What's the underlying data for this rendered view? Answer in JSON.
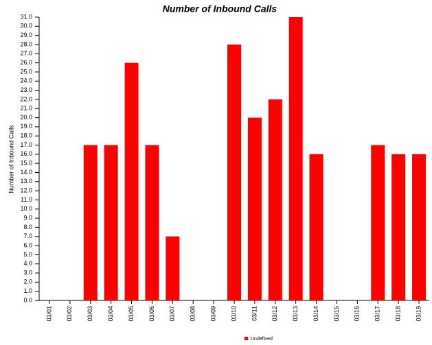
{
  "chart_data": {
    "type": "bar",
    "title": "Number of Inbound Calls",
    "ylabel": "Number of Inbound Calls",
    "categories": [
      "03/01",
      "03/02",
      "03/03",
      "03/04",
      "03/05",
      "03/06",
      "03/07",
      "03/08",
      "03/09",
      "03/10",
      "03/11",
      "03/12",
      "03/13",
      "03/14",
      "03/15",
      "03/16",
      "03/17",
      "03/18",
      "03/19"
    ],
    "series": [
      {
        "name": "Undefined",
        "color": "#ff0000",
        "values": [
          0,
          0,
          17,
          17,
          26,
          17,
          7,
          0,
          0,
          28,
          20,
          22,
          31,
          16,
          0,
          0,
          17,
          16,
          16
        ]
      }
    ],
    "ylim": [
      0,
      31
    ],
    "yticks": [
      {
        "value": 0,
        "label": "0.0"
      },
      {
        "value": 1,
        "label": "1.0"
      },
      {
        "value": 2,
        "label": "2.0"
      },
      {
        "value": 3,
        "label": "3.0"
      },
      {
        "value": 4,
        "label": "4.0"
      },
      {
        "value": 5,
        "label": "5.0"
      },
      {
        "value": 6,
        "label": "6.0"
      },
      {
        "value": 7,
        "label": "7.0"
      },
      {
        "value": 8,
        "label": "8.0"
      },
      {
        "value": 9,
        "label": "9.0"
      },
      {
        "value": 10,
        "label": "10.0"
      },
      {
        "value": 11,
        "label": "11.0"
      },
      {
        "value": 12,
        "label": "12.0"
      },
      {
        "value": 13,
        "label": "13.0"
      },
      {
        "value": 14,
        "label": "14.0"
      },
      {
        "value": 15,
        "label": "15.0"
      },
      {
        "value": 16,
        "label": "16.0"
      },
      {
        "value": 17,
        "label": "17.0"
      },
      {
        "value": 18,
        "label": "18.0"
      },
      {
        "value": 19,
        "label": "19.0"
      },
      {
        "value": 20,
        "label": "20.0"
      },
      {
        "value": 21,
        "label": "21.0"
      },
      {
        "value": 22,
        "label": "22.0"
      },
      {
        "value": 23,
        "label": "23.0"
      },
      {
        "value": 24,
        "label": "24.0"
      },
      {
        "value": 25,
        "label": "25.0"
      },
      {
        "value": 26,
        "label": "26.0"
      },
      {
        "value": 27,
        "label": "27.0"
      },
      {
        "value": 28,
        "label": "28.0"
      },
      {
        "value": 29,
        "label": "29.0"
      },
      {
        "value": 30,
        "label": "30.0"
      },
      {
        "value": 31,
        "label": "31.0"
      }
    ],
    "grid": false,
    "legend": "bottom"
  }
}
